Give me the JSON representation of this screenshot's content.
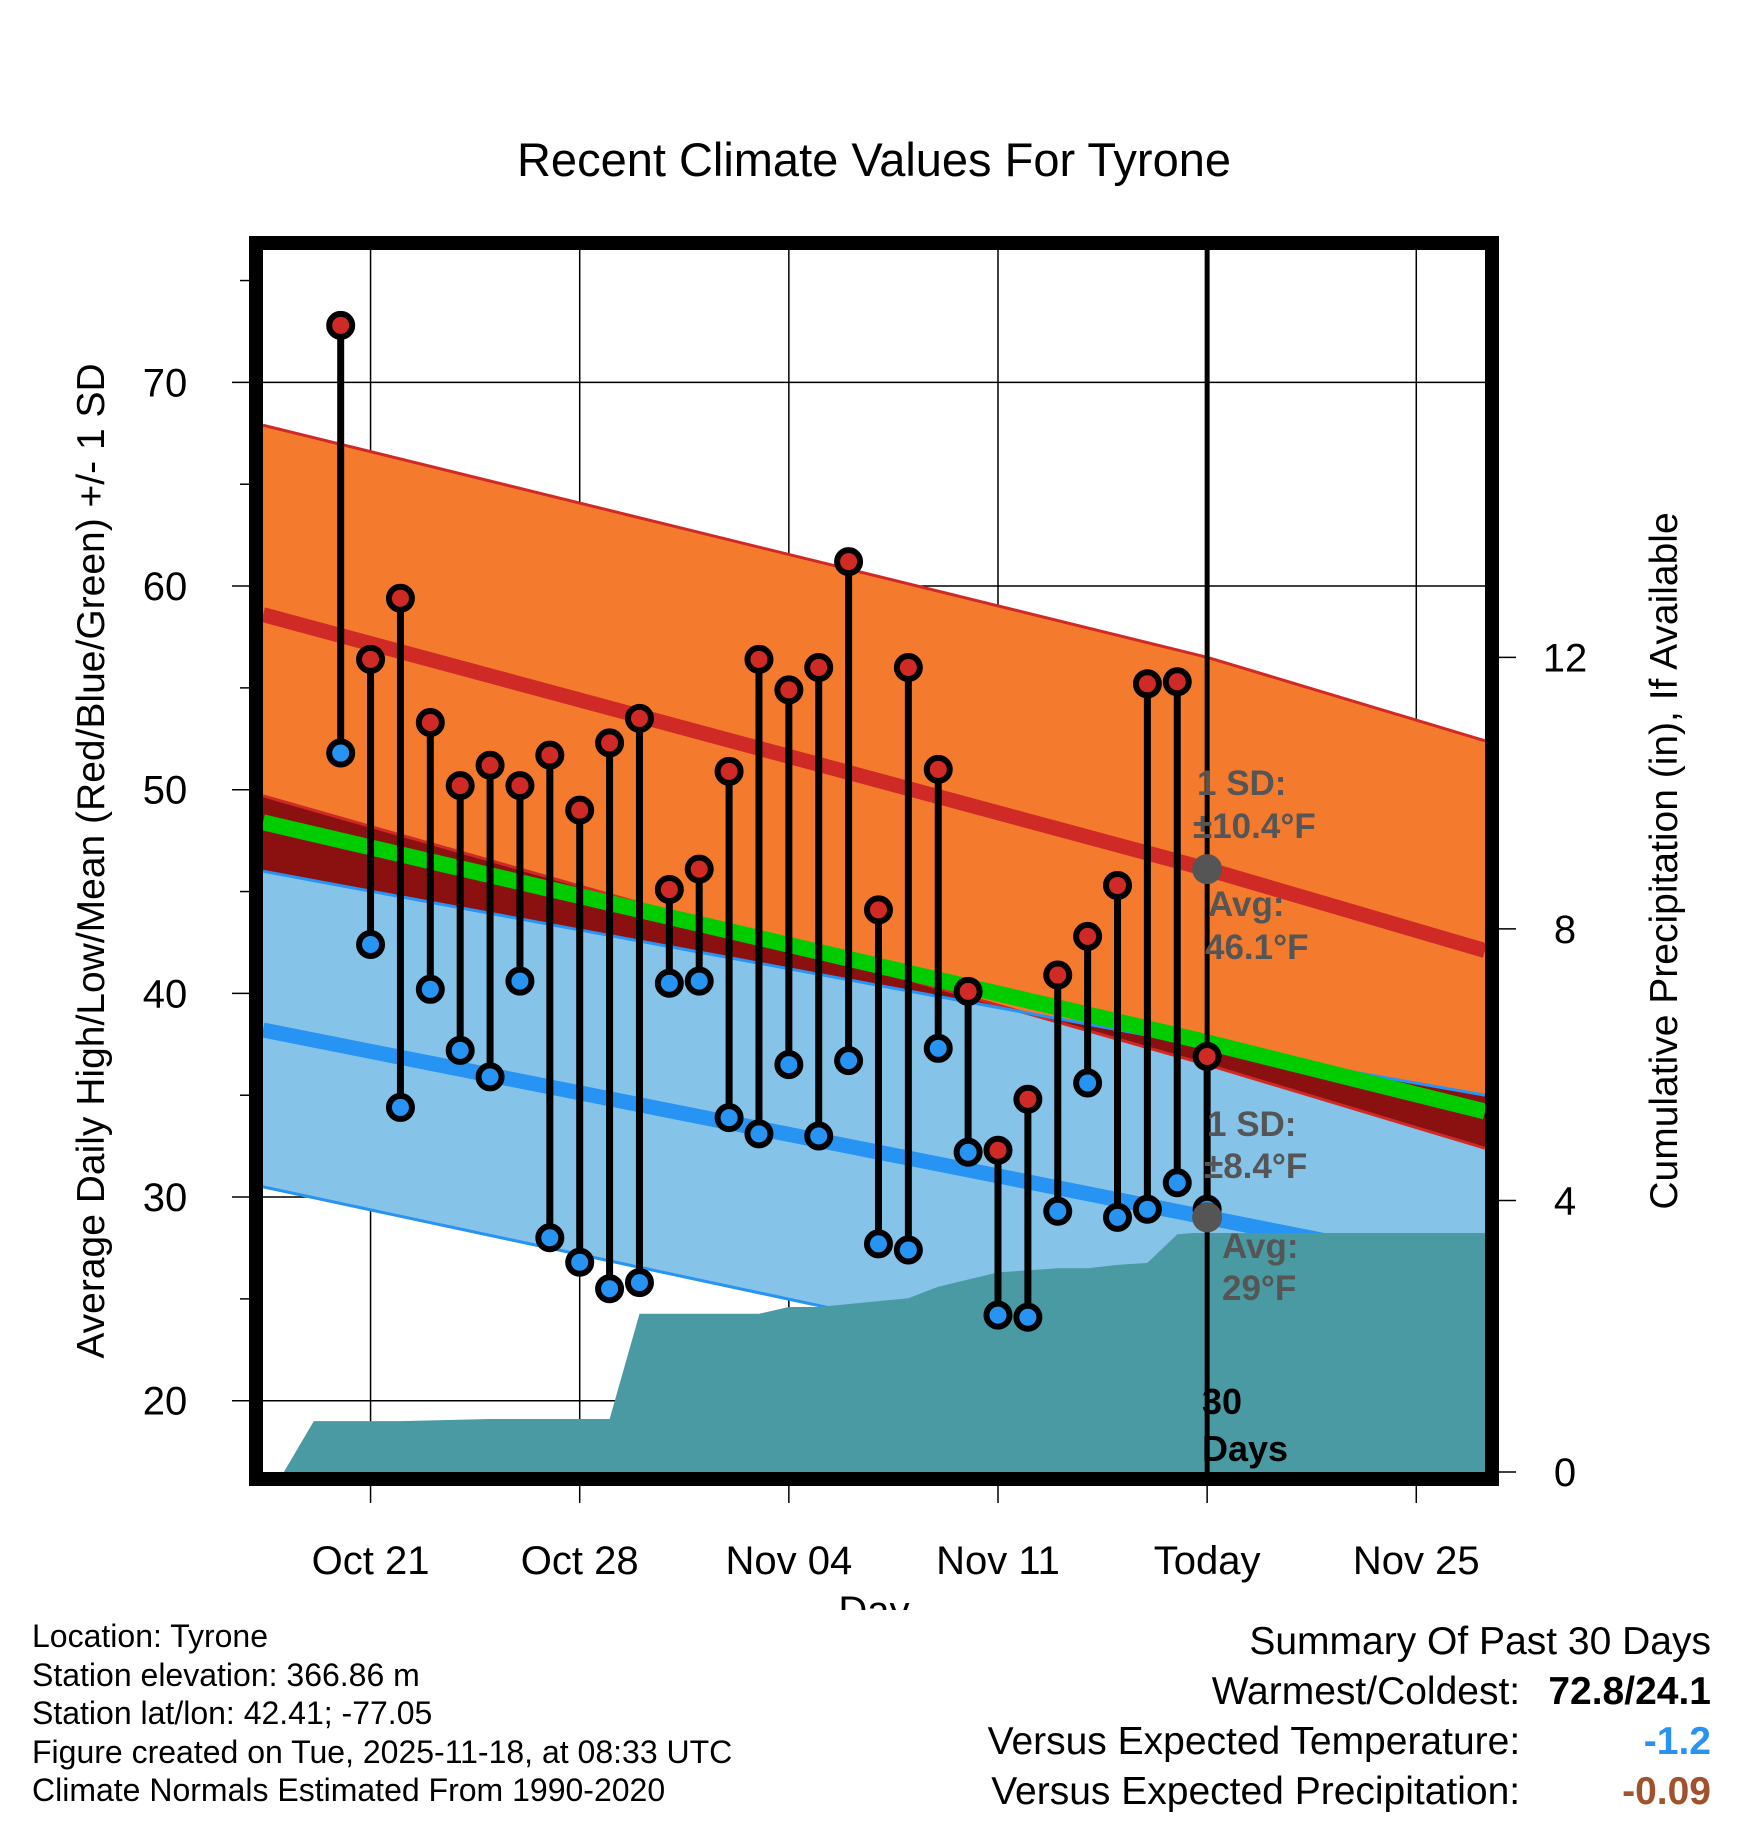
{
  "colors": {
    "high_band": "#f47b2e",
    "high_line": "#d02a26",
    "low_band": "#86c3e8",
    "low_line": "#2793f2",
    "mean_line": "#00cc00",
    "gap_dark": "#8b1010",
    "precip": "#4a9aa3",
    "marker_high": "#d02a26",
    "marker_low": "#2793f2",
    "stats_text": "#555555",
    "precip_value": "#a0522d"
  },
  "chart_data": {
    "type": "line",
    "title": "Recent Climate Values For Tyrone",
    "xlabel": "Day",
    "ylabel": "Average Daily High/Low/Mean (Red/Blue/Green) +/- 1 SD",
    "y2label": "Cumulative Precipitation (in), If Available",
    "ylim": [
      16.5,
      76.5
    ],
    "y2lim": [
      0,
      18
    ],
    "xlim": [
      -2.6,
      38.3
    ],
    "x_ticks": [
      {
        "day": 1,
        "label": "Oct 21"
      },
      {
        "day": 8,
        "label": "Oct 28"
      },
      {
        "day": 15,
        "label": "Nov 04"
      },
      {
        "day": 22,
        "label": "Nov 11"
      },
      {
        "day": 29,
        "label": "Today"
      },
      {
        "day": 36,
        "label": "Nov 25"
      }
    ],
    "y_ticks": [
      20,
      30,
      40,
      50,
      60,
      70
    ],
    "y2_ticks": [
      0,
      4,
      8,
      12
    ],
    "normals": {
      "days": [
        -2.6,
        29,
        38.3
      ],
      "high_mean": [
        58.6,
        46.1,
        42.1
      ],
      "high_sd_upper": [
        67.9,
        56.5,
        52.4
      ],
      "high_sd_lower": [
        49.7,
        36.5,
        32.4
      ],
      "low_mean": [
        38.2,
        29.0,
        26.3
      ],
      "low_sd_upper": [
        46.0,
        37.4,
        35.0
      ],
      "low_sd_lower": [
        30.5,
        20.6,
        17.9
      ],
      "overall_mean": [
        48.4,
        37.6,
        34.2
      ]
    },
    "daily": {
      "days": [
        0,
        1,
        2,
        3,
        4,
        5,
        6,
        7,
        8,
        9,
        10,
        11,
        12,
        13,
        14,
        15,
        16,
        17,
        18,
        19,
        20,
        21,
        22,
        23,
        24,
        25,
        26,
        27,
        28
      ],
      "high": [
        72.8,
        56.4,
        59.4,
        53.3,
        50.2,
        51.2,
        50.2,
        51.7,
        49.0,
        52.3,
        53.5,
        45.1,
        46.1,
        50.9,
        56.4,
        54.9,
        56.0,
        61.2,
        44.1,
        56.0,
        51.0,
        40.1,
        32.3,
        34.8,
        40.9,
        42.8,
        45.3,
        55.2,
        55.3
      ],
      "low": [
        51.8,
        42.4,
        34.4,
        40.2,
        37.2,
        35.9,
        40.6,
        28.0,
        26.8,
        25.5,
        25.8,
        40.5,
        40.6,
        33.9,
        33.1,
        36.5,
        33.0,
        36.7,
        27.7,
        27.4,
        37.3,
        32.2,
        24.2,
        24.1,
        29.3,
        35.6,
        29.0,
        29.4,
        30.7
      ],
      "today_high": 36.9,
      "today_low": 29.4
    },
    "precip_cumulative": {
      "days": [
        -2.6,
        -1.9,
        -0.9,
        2,
        5,
        8,
        9,
        10,
        12,
        14,
        15,
        16,
        19,
        20,
        22,
        24,
        25,
        26,
        27,
        28,
        28.5,
        29,
        38.3
      ],
      "values": [
        0,
        0,
        0.75,
        0.75,
        0.78,
        0.78,
        0.78,
        2.33,
        2.33,
        2.33,
        2.43,
        2.43,
        2.56,
        2.73,
        2.94,
        3.0,
        3.0,
        3.05,
        3.08,
        3.5,
        3.52,
        3.52,
        3.52
      ]
    },
    "annotations": {
      "high_sd_label": "1 SD:",
      "high_sd_value": "±10.4°F",
      "high_avg_label": "Avg:",
      "high_avg_value": "46.1°F",
      "low_sd_label": "1 SD:",
      "low_sd_value": "±8.4°F",
      "low_avg_label": "Avg:",
      "low_avg_value": "29°F",
      "window_count": "30",
      "window_unit": "Days",
      "high_avg_marker": 46.1,
      "low_avg_marker": 29.0
    }
  },
  "info": {
    "location": "Location: Tyrone",
    "elevation": "Station elevation: 366.86 m",
    "latlon": "Station lat/lon: 42.41; -77.05",
    "created": "Figure created on Tue, 2025-11-18, at 08:33 UTC",
    "normals": "Climate Normals Estimated From 1990-2020"
  },
  "summary": {
    "heading": "Summary Of Past 30 Days",
    "warmest_coldest_label": "Warmest/Coldest:",
    "warmest_coldest_value": "72.8/24.1",
    "temp_label": "Versus Expected Temperature:",
    "temp_value": "-1.2",
    "precip_label": "Versus Expected Precipitation:",
    "precip_value": "-0.09"
  }
}
